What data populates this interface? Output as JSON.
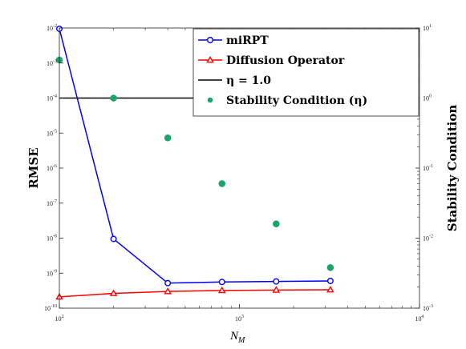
{
  "chart_data": {
    "type": "line",
    "xlabel": "N",
    "xlabel_sub": "M",
    "ylabel_left": "RMSE",
    "ylabel_right": "Stability Condition",
    "x_scale": "log",
    "xlim": [
      100,
      10000
    ],
    "x_ticks": [
      {
        "value": 100,
        "base": "10",
        "exp": "2"
      },
      {
        "value": 1000,
        "base": "10",
        "exp": "3"
      },
      {
        "value": 10000,
        "base": "10",
        "exp": "4"
      }
    ],
    "y_left_scale": "log",
    "ylim_left": [
      1e-10,
      0.01
    ],
    "y_left_ticks": [
      {
        "value": 1e-10,
        "base": "10",
        "exp": "-10"
      },
      {
        "value": 1e-09,
        "base": "10",
        "exp": "-9"
      },
      {
        "value": 1e-08,
        "base": "10",
        "exp": "-8"
      },
      {
        "value": 1e-07,
        "base": "10",
        "exp": "-7"
      },
      {
        "value": 1e-06,
        "base": "10",
        "exp": "-6"
      },
      {
        "value": 1e-05,
        "base": "10",
        "exp": "-5"
      },
      {
        "value": 0.0001,
        "base": "10",
        "exp": "-4"
      },
      {
        "value": 0.001,
        "base": "10",
        "exp": "-3"
      },
      {
        "value": 0.01,
        "base": "10",
        "exp": "-2"
      }
    ],
    "y_right_scale": "log",
    "ylim_right": [
      0.001,
      10
    ],
    "y_right_ticks": [
      {
        "value": 0.001,
        "base": "10",
        "exp": "-3"
      },
      {
        "value": 0.01,
        "base": "10",
        "exp": "-2"
      },
      {
        "value": 0.1,
        "base": "10",
        "exp": "-1"
      },
      {
        "value": 1,
        "base": "10",
        "exp": "0"
      },
      {
        "value": 10,
        "base": "10",
        "exp": "1"
      }
    ],
    "legend_position": "top-right",
    "series": [
      {
        "name": "miRPT",
        "axis": "left",
        "style": "line-circle",
        "color": "#0000ff",
        "x": [
          100,
          200,
          400,
          800,
          1600,
          3200
        ],
        "values": [
          0.0095,
          9.5e-09,
          5.2e-10,
          5.6e-10,
          5.8e-10,
          6e-10
        ]
      },
      {
        "name": "Diffusion Operator",
        "axis": "left",
        "style": "line-triangle",
        "color": "#ff0000",
        "x": [
          100,
          200,
          400,
          800,
          1600,
          3200
        ],
        "values": [
          2.1e-10,
          2.65e-10,
          3e-10,
          3.2e-10,
          3.3e-10,
          3.35e-10
        ]
      },
      {
        "name": "η = 1.0",
        "axis": "right",
        "style": "hline",
        "color": "#000000",
        "values": [
          1.0
        ]
      },
      {
        "name": "Stability Condition (η)",
        "axis": "right",
        "style": "dots",
        "color": "#1aa66a",
        "x": [
          100,
          200,
          400,
          800,
          1600,
          3200
        ],
        "values": [
          3.5,
          1.0,
          0.27,
          0.06,
          0.016,
          0.0038
        ]
      }
    ]
  }
}
